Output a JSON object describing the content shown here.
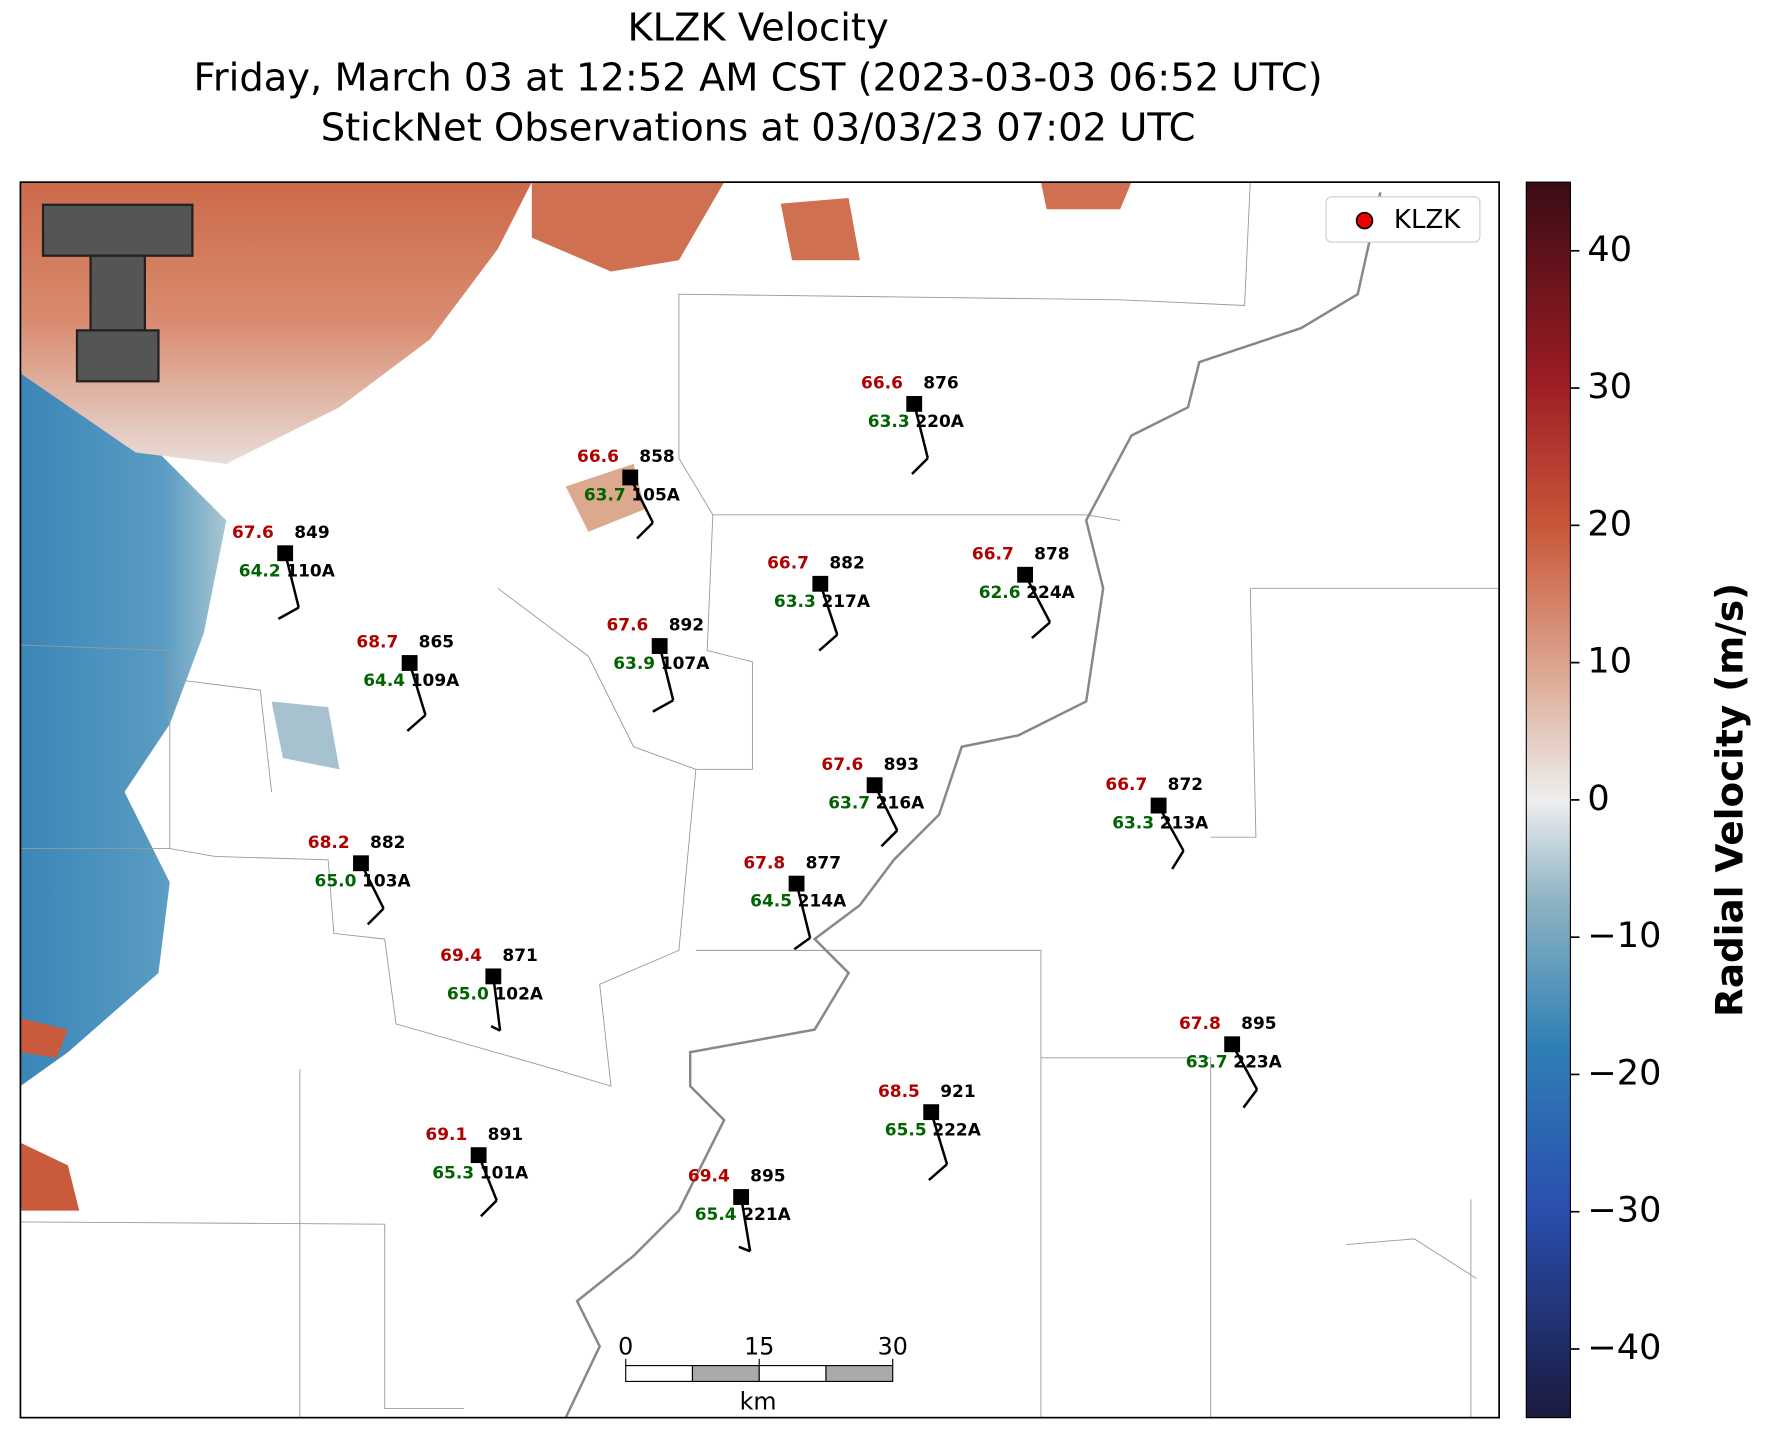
{
  "title": "KLZK Velocity",
  "subtitle": "Friday, March 03 at 12:52 AM CST (2023-03-03 06:52 UTC)",
  "observation_time": "StickNet Observations at 03/03/23 07:02 UTC",
  "legend_label": "KLZK",
  "colorbar": {
    "label": "Radial Velocity (m/s)",
    "lim": [
      -45,
      45
    ],
    "ticks": [
      {
        "value": -40,
        "label": "−40"
      },
      {
        "value": -30,
        "label": "−30"
      },
      {
        "value": -20,
        "label": "−20"
      },
      {
        "value": -10,
        "label": "−10"
      },
      0,
      10,
      20,
      30,
      40
    ]
  },
  "scale_bar": {
    "ticks": [
      0,
      15,
      30
    ],
    "unit": "km"
  },
  "stations": [
    {
      "id": "220A",
      "temperature": 66.6,
      "dewpoint": 63.3,
      "pressure": 876
    },
    {
      "id": "105A",
      "temperature": 66.6,
      "dewpoint": 63.7,
      "pressure": 858
    },
    {
      "id": "110A",
      "temperature": 67.6,
      "dewpoint": 64.2,
      "pressure": 849
    },
    {
      "id": "217A",
      "temperature": 66.7,
      "dewpoint": 63.3,
      "pressure": 882
    },
    {
      "id": "224A",
      "temperature": 66.7,
      "dewpoint": 62.6,
      "pressure": 878
    },
    {
      "id": "107A",
      "temperature": 67.6,
      "dewpoint": 63.9,
      "pressure": 892
    },
    {
      "id": "109A",
      "temperature": 68.7,
      "dewpoint": 64.4,
      "pressure": 865
    },
    {
      "id": "216A",
      "temperature": 67.6,
      "dewpoint": 63.7,
      "pressure": 893
    },
    {
      "id": "213A",
      "temperature": 66.7,
      "dewpoint": 63.3,
      "pressure": 872
    },
    {
      "id": "103A",
      "temperature": 68.2,
      "dewpoint": {
        "value": 65.0,
        "label": "65.0"
      },
      "pressure": 882
    },
    {
      "id": "214A",
      "temperature": 67.8,
      "dewpoint": 64.5,
      "pressure": 877
    },
    {
      "id": "102A",
      "temperature": 69.4,
      "dewpoint": {
        "value": 65.0,
        "label": "65.0"
      },
      "pressure": 871
    },
    {
      "id": "223A",
      "temperature": 67.8,
      "dewpoint": 63.7,
      "pressure": 895
    },
    {
      "id": "222A",
      "temperature": 68.5,
      "dewpoint": 65.5,
      "pressure": 921
    },
    {
      "id": "101A",
      "temperature": 69.1,
      "dewpoint": 65.3,
      "pressure": 891
    },
    {
      "id": "221A",
      "temperature": 69.4,
      "dewpoint": 65.4,
      "pressure": 895
    }
  ]
}
